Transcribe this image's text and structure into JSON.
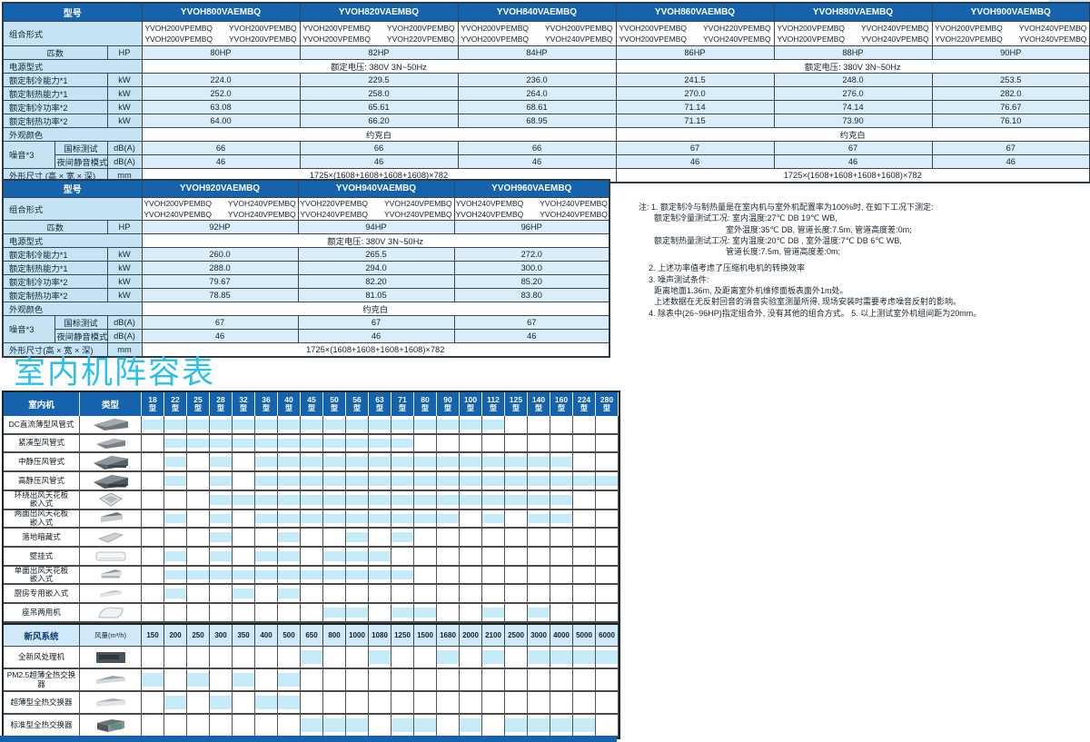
{
  "title": "室内机阵容表",
  "colors": {
    "header_blue": "#1563ac",
    "label_blue": "#c6e3f4",
    "row_blue": "#daedf8",
    "fill_cyan": "#c5eaf8",
    "title_cyan": "#2bc0ec",
    "fresh_header_bg": "#cfe9f8",
    "border_dark": "#3b4750"
  },
  "spec_tables": [
    {
      "model_header": "型号",
      "models": [
        "YVOH800VAEMBQ",
        "YVOH820VAEMBQ",
        "YVOH840VAEMBQ",
        "YVOH860VAEMBQ",
        "YVOH880VAEMBQ",
        "YVOH900VAEMBQ"
      ],
      "combination_label": "组合形式",
      "combinations": [
        [
          [
            "YVOH200VPEMBQ",
            "YVOH200VPEMBQ"
          ],
          [
            "YVOH200VPEMBQ",
            "YVOH200VPEMBQ"
          ]
        ],
        [
          [
            "YVOH200VPEMBQ",
            "YVOH200VPEMBQ"
          ],
          [
            "YVOH200VPEMBQ",
            "YVOH220VPEMBQ"
          ]
        ],
        [
          [
            "YVOH200VPEMBQ",
            "YVOH200VPEMBQ"
          ],
          [
            "YVOH200VPEMBQ",
            "YVOH240VPEMBQ"
          ]
        ],
        [
          [
            "YVOH200VPEMBQ",
            "YVOH220VPEMBQ"
          ],
          [
            "YVOH200VPEMBQ",
            "YVOH240VPEMBQ"
          ]
        ],
        [
          [
            "YVOH200VPEMBQ",
            "YVOH240VPEMBQ"
          ],
          [
            "YVOH200VPEMBQ",
            "YVOH240VPEMBQ"
          ]
        ],
        [
          [
            "YVOH200VPEMBQ",
            "YVOH240VPEMBQ"
          ],
          [
            "YVOH220VPEMBQ",
            "YVOH240VPEMBQ"
          ]
        ]
      ],
      "hp_label": "匹数",
      "hp_unit": "HP",
      "hp_values": [
        "80HP",
        "82HP",
        "84HP",
        "86HP",
        "88HP",
        "90HP"
      ],
      "power_label": "电源型式",
      "power_span": 3,
      "power_values": [
        "额定电压: 380V 3N~50Hz",
        "额定电压: 380V 3N~50Hz"
      ],
      "rows": [
        {
          "label": "额定制冷能力*1",
          "unit": "kW",
          "values": [
            "224.0",
            "229.5",
            "236.0",
            "241.5",
            "248.0",
            "253.5"
          ]
        },
        {
          "label": "额定制热能力*1",
          "unit": "kW",
          "values": [
            "252.0",
            "258.0",
            "264.0",
            "270.0",
            "276.0",
            "282.0"
          ]
        },
        {
          "label": "额定制冷功率*2",
          "unit": "kW",
          "values": [
            "63.08",
            "65.61",
            "68.61",
            "71.14",
            "74.14",
            "76.67"
          ]
        },
        {
          "label": "额定制热功率*2",
          "unit": "kW",
          "values": [
            "64.00",
            "66.20",
            "68.95",
            "71.15",
            "73.90",
            "76.10"
          ]
        }
      ],
      "color_label": "外观颜色",
      "color_values": [
        "约克白",
        "约克白"
      ],
      "noise_label": "噪音*3",
      "noise_rows": [
        {
          "label": "国标测试",
          "unit": "dB(A)",
          "values": [
            "66",
            "66",
            "66",
            "67",
            "67",
            "67"
          ]
        },
        {
          "label": "夜间静音模式",
          "unit": "dB(A)",
          "values": [
            "46",
            "46",
            "46",
            "46",
            "46",
            "46"
          ]
        }
      ],
      "dim_label": "外形尺寸 (高 × 宽 × 深)",
      "dim_unit": "mm",
      "dim_values": [
        "1725×(1608+1608+1608+1608)×782",
        "1725×(1608+1608+1608+1608)×782"
      ]
    },
    {
      "model_header": "型号",
      "models": [
        "YVOH920VAEMBQ",
        "YVOH940VAEMBQ",
        "YVOH960VAEMBQ"
      ],
      "combination_label": "组合形式",
      "combinations": [
        [
          [
            "YVOH200VPEMBQ",
            "YVOH240VPEMBQ"
          ],
          [
            "YVOH240VPEMBQ",
            "YVOH240VPEMBQ"
          ]
        ],
        [
          [
            "YVOH220VPEMBQ",
            "YVOH240VPEMBQ"
          ],
          [
            "YVOH240VPEMBQ",
            "YVOH240VPEMBQ"
          ]
        ],
        [
          [
            "YVOH240VPEMBQ",
            "YVOH240VPEMBQ"
          ],
          [
            "YVOH240VPEMBQ",
            "YVOH240VPEMBQ"
          ]
        ]
      ],
      "hp_label": "匹数",
      "hp_unit": "HP",
      "hp_values": [
        "92HP",
        "94HP",
        "96HP"
      ],
      "power_label": "电源型式",
      "power_span": 3,
      "power_values": [
        "额定电压: 380V 3N~50Hz"
      ],
      "rows": [
        {
          "label": "额定制冷能力*1",
          "unit": "kW",
          "values": [
            "260.0",
            "265.5",
            "272.0"
          ]
        },
        {
          "label": "额定制热能力*1",
          "unit": "kW",
          "values": [
            "288.0",
            "294.0",
            "300.0"
          ]
        },
        {
          "label": "额定制冷功率*2",
          "unit": "kW",
          "values": [
            "79.67",
            "82.20",
            "85.20"
          ]
        },
        {
          "label": "额定制热功率*2",
          "unit": "kW",
          "values": [
            "78.85",
            "81.05",
            "83.80"
          ]
        }
      ],
      "color_label": "外观颜色",
      "color_values": [
        "约克白"
      ],
      "noise_label": "噪音*3",
      "noise_rows": [
        {
          "label": "国标测试",
          "unit": "dB(A)",
          "values": [
            "67",
            "67",
            "67"
          ]
        },
        {
          "label": "夜间静音模式",
          "unit": "dB(A)",
          "values": [
            "46",
            "46",
            "46"
          ]
        }
      ],
      "dim_label": "外形尺寸(高 × 宽 × 深)",
      "dim_unit": "mm",
      "dim_values": [
        "1725×(1608+1608+1608+1608)×782"
      ]
    }
  ],
  "notes": {
    "lines": [
      {
        "text": "注: 1. 额定制冷与制热量是在室内机与室外机配置率为100%时, 在如下工况下测定:",
        "indent": 0
      },
      {
        "text": "额定制冷量测试工况: 室内温度:27℃ DB  19℃ WB,",
        "indent": 2
      },
      {
        "text": "室外温度:35℃ DB, 管道长度:7.5m, 管道高度差:0m;",
        "indent": 3
      },
      {
        "text": "额定制热量测试工况: 室内温度:20℃ DB , 室外温度:7℃ DB 6℃ WB,",
        "indent": 2
      },
      {
        "text": "管道长度:7.5m, 管道高度差:0m;",
        "indent": 3
      },
      {
        "text": "2. 上述功率值考虑了压缩机电机的转换效率",
        "indent": 1,
        "gap": true
      },
      {
        "text": "3. 噪声测试条件:",
        "indent": 1
      },
      {
        "text": "距离地面1.36m, 及距离室外机维修面板表面外1m处。",
        "indent": 2
      },
      {
        "text": "上述数据在无反射回音的消音实验室测量所得, 现场安装时需要考虑噪音反射的影响。",
        "indent": 2
      },
      {
        "text": "4. 除表中(26~96HP)指定组合外, 没有其他的组合方式。      5. 以上测试室外机组间距为20mm。",
        "indent": 1
      }
    ]
  },
  "matrix": {
    "col_header_left": "室内机",
    "col_header_type": "类型",
    "size_suffix": "型",
    "sizes": [
      "18",
      "22",
      "25",
      "28",
      "32",
      "36",
      "40",
      "45",
      "50",
      "56",
      "63",
      "71",
      "80",
      "90",
      "100",
      "112",
      "125",
      "140",
      "160",
      "224",
      "280"
    ],
    "rows": [
      {
        "label": "DC直流薄型风管式",
        "icon": "slim-duct-unit-image",
        "filled": [
          "18",
          "22",
          "25",
          "28",
          "32",
          "36",
          "40",
          "45",
          "50",
          "56",
          "63",
          "71",
          "80",
          "90",
          "100",
          "112"
        ]
      },
      {
        "label": "紧凑型风管式",
        "icon": "compact-duct-unit-image",
        "filled": [
          "22",
          "25",
          "28",
          "32",
          "36",
          "40",
          "45",
          "50",
          "56",
          "63",
          "71"
        ]
      },
      {
        "label": "中静压风管式",
        "icon": "mid-static-duct-unit-image",
        "filled": [
          "22",
          "28",
          "36",
          "40",
          "45",
          "50",
          "56",
          "63",
          "71",
          "80",
          "90",
          "100",
          "112",
          "125",
          "140",
          "160"
        ]
      },
      {
        "label": "高静压风管式",
        "icon": "high-static-duct-unit-image",
        "filled": [
          "22",
          "28",
          "36",
          "40",
          "45",
          "50",
          "56",
          "63",
          "71",
          "80",
          "90",
          "100",
          "112",
          "125",
          "140",
          "160",
          "224",
          "280"
        ]
      },
      {
        "label": "环绕出风天花板\n嵌入式",
        "icon": "round-flow-cassette-unit-image",
        "filled": [
          "28",
          "32",
          "36",
          "40",
          "45",
          "50",
          "56",
          "63",
          "71",
          "80",
          "90",
          "100",
          "112",
          "125",
          "140",
          "160"
        ]
      },
      {
        "label": "两面出风天花板\n嵌入式",
        "icon": "two-way-cassette-unit-image",
        "filled": [
          "22",
          "28",
          "36",
          "40",
          "45",
          "50",
          "56",
          "63",
          "71",
          "80",
          "90",
          "112",
          "140",
          "160"
        ]
      },
      {
        "label": "落地暗藏式",
        "icon": "floor-concealed-unit-image",
        "filled": [
          "28",
          "40",
          "56",
          "71"
        ]
      },
      {
        "label": "壁挂式",
        "icon": "wall-mounted-unit-image",
        "filled": [
          "22",
          "28",
          "36",
          "40",
          "50",
          "56",
          "63"
        ]
      },
      {
        "label": "单面出风天花板\n嵌入式",
        "icon": "one-way-cassette-unit-image",
        "filled": [
          "22",
          "25",
          "28",
          "32",
          "36",
          "40",
          "45",
          "50",
          "56",
          "63",
          "71"
        ]
      },
      {
        "label": "厨房专用嵌入式",
        "icon": "kitchen-cassette-unit-image",
        "filled": [
          "22",
          "32",
          "40"
        ]
      },
      {
        "label": "座吊两用机",
        "icon": "floor-ceiling-unit-image",
        "filled": [
          "50",
          "56",
          "71",
          "80",
          "112",
          "140"
        ]
      }
    ]
  },
  "fresh": {
    "header": "新风系统",
    "vol_label": "风量(m³/h)",
    "volumes": [
      "150",
      "200",
      "250",
      "300",
      "350",
      "400",
      "500",
      "650",
      "800",
      "1000",
      "1080",
      "1250",
      "1500",
      "1680",
      "2000",
      "2100",
      "2500",
      "3000",
      "4000",
      "5000",
      "6000"
    ],
    "rows": [
      {
        "label": "全新风处理机",
        "icon": "fresh-air-processor-unit-image",
        "filled": [
          "650",
          "1080",
          "1680",
          "2100",
          "3000",
          "4000",
          "5000",
          "6000"
        ]
      },
      {
        "label": "PM2.5超薄全热交换器",
        "icon": "pm25-slim-erv-unit-image",
        "filled": [
          "150",
          "250",
          "350",
          "500"
        ]
      },
      {
        "label": "超薄型全热交换器",
        "icon": "slim-erv-unit-image",
        "filled": [
          "200",
          "300",
          "400",
          "500"
        ]
      },
      {
        "label": "标准型全热交换器",
        "icon": "standard-erv-unit-image",
        "filled": [
          "650",
          "800",
          "1000",
          "1250",
          "1500",
          "2000",
          "2500",
          "3000",
          "4000",
          "5000"
        ]
      }
    ]
  }
}
